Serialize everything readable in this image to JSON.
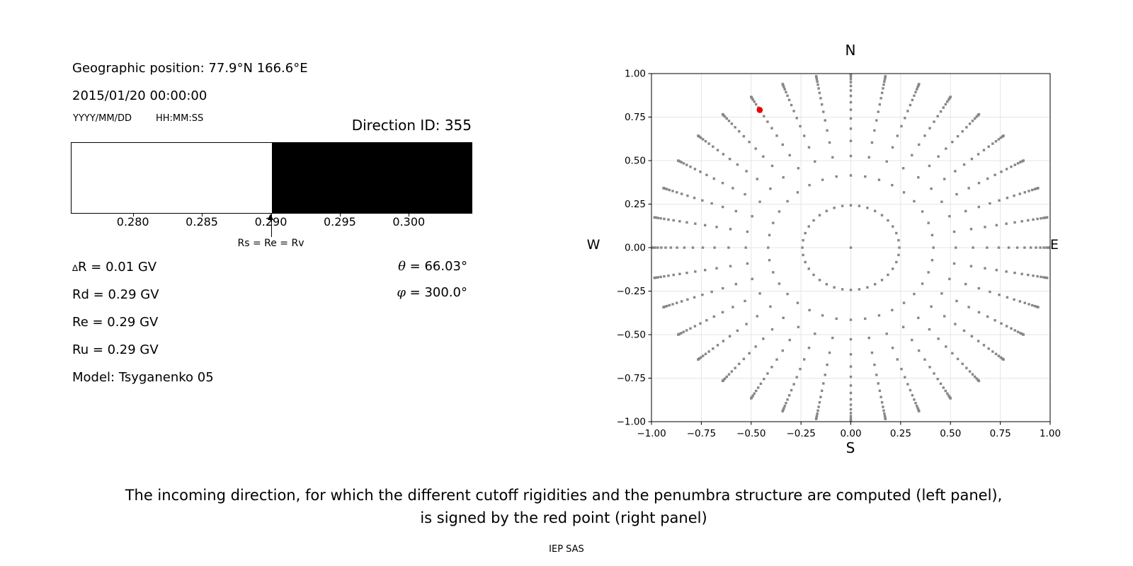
{
  "left_panel": {
    "geo_position": "Geographic position: 77.9°N 166.6°E",
    "datetime": "2015/01/20 00:00:00",
    "date_fmt": "YYYY/MM/DD",
    "time_fmt": "HH:MM:SS",
    "direction_id": "Direction ID: 355",
    "lines": [
      {
        "sym": "∆",
        "text": "R = 0.01 GV"
      },
      {
        "sym": "",
        "text": "Rd = 0.29 GV"
      },
      {
        "sym": "",
        "text": "Re = 0.29 GV"
      },
      {
        "sym": "",
        "text": "Ru = 0.29 GV"
      },
      {
        "sym": "",
        "text": "Model: Tsyganenko 05"
      }
    ],
    "theta": {
      "sym": "θ",
      "text": " = 66.03°"
    },
    "phi": {
      "sym": "φ",
      "text": " = 300.0°"
    }
  },
  "right_panel": {
    "labels": {
      "top": "N",
      "bottom": "S",
      "left": "W",
      "right": "E"
    }
  },
  "caption": {
    "line1": "The incoming direction, for which the different cutoff rigidities and the penumbra structure are computed (left panel),",
    "line2": "is signed by the red point (right panel)",
    "credit": "IEP SAS"
  },
  "chart_data": [
    {
      "type": "bar",
      "title": "penumbra structure (white = allowed, black = forbidden)",
      "xlim": [
        0.2755,
        0.3045
      ],
      "xtick_values": [
        0.28,
        0.285,
        0.29,
        0.295,
        0.3
      ],
      "xtick_labels": [
        "0.280",
        "0.285",
        "0.290",
        "0.295",
        "0.300"
      ],
      "segments": [
        {
          "from": 0.2755,
          "to": 0.29,
          "color": "#ffffff"
        },
        {
          "from": 0.29,
          "to": 0.3045,
          "color": "#000000"
        }
      ],
      "annotation": {
        "x": 0.29,
        "label": "Rs = Re = Rv"
      }
    },
    {
      "type": "scatter",
      "title": "N",
      "xlabel": "S",
      "left_label": "W",
      "right_label": "E",
      "xlim": [
        -1.0,
        1.0
      ],
      "ylim": [
        -1.0,
        1.0
      ],
      "grid": true,
      "grid_color": "#e5e5e5",
      "xtick_values": [
        -1.0,
        -0.75,
        -0.5,
        -0.25,
        0.0,
        0.25,
        0.5,
        0.75,
        1.0
      ],
      "xtick_labels": [
        "−1.00",
        "−0.75",
        "−0.50",
        "−0.25",
        "0.00",
        "0.25",
        "0.50",
        "0.75",
        "1.00"
      ],
      "ytick_values": [
        1.0,
        0.75,
        0.5,
        0.25,
        0.0,
        -0.25,
        -0.5,
        -0.75,
        -1.0
      ],
      "ytick_labels": [
        "1.00",
        "0.75",
        "0.50",
        "0.25",
        "0.00",
        "−0.25",
        "−0.50",
        "−0.75",
        "−1.00"
      ],
      "marker_color": "#878787",
      "spokes": {
        "count": 36,
        "azimuth_step_deg": 10,
        "points_per_spoke": 17,
        "cos_zenith_start": 0.97,
        "cos_zenith_step": 0.06,
        "radius_rule": "r = sin(zenith) = sqrt(1 - cos_zenith^2)"
      },
      "center_point": {
        "x": 0.0,
        "y": 0.0
      },
      "highlight_point": {
        "x": -0.457,
        "y": 0.791,
        "color": "#ee0000",
        "theta_deg": 66.03,
        "phi_deg": 300.0
      }
    }
  ]
}
